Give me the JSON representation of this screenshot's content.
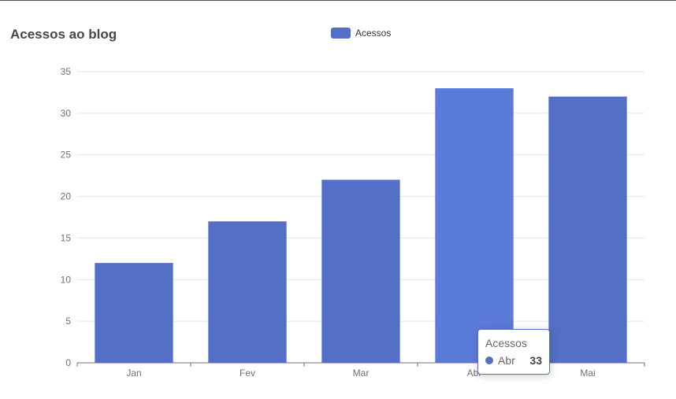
{
  "chart_data": {
    "type": "bar",
    "title": "Acessos ao blog",
    "categories": [
      "Jan",
      "Fev",
      "Mar",
      "Abr",
      "Mai"
    ],
    "series": [
      {
        "name": "Acessos",
        "values": [
          12,
          17,
          22,
          33,
          32
        ]
      }
    ],
    "ylim": [
      0,
      35
    ],
    "yticks": [
      0,
      5,
      10,
      15,
      20,
      25,
      30,
      35
    ],
    "grid": true,
    "legend_position": "top-center",
    "colors": {
      "bar": "#5470c6",
      "bar_highlight": "#5b7bd9",
      "grid": "#e0e6f1",
      "axis": "#6e7079"
    }
  },
  "tooltip": {
    "series_name": "Acessos",
    "category": "Abr",
    "value": "33",
    "highlighted_index": 3
  }
}
